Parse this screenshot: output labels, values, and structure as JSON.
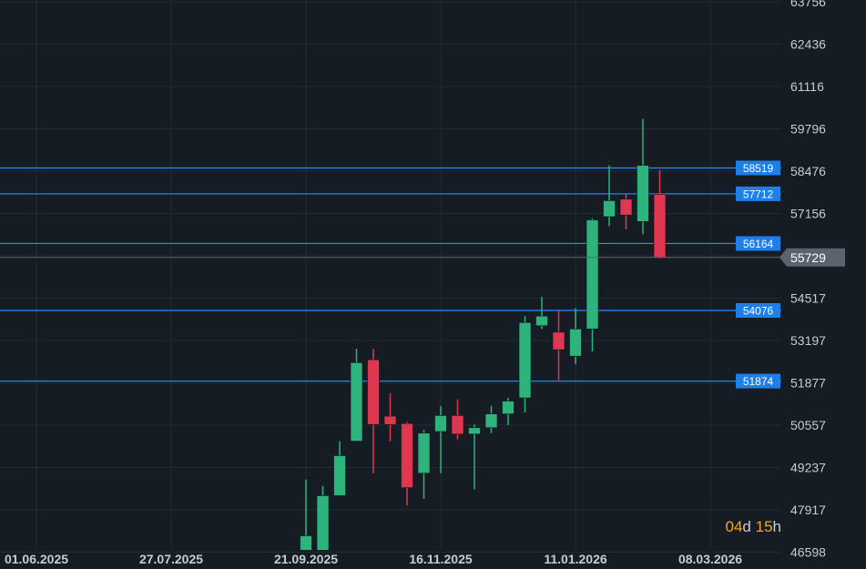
{
  "chart_data": {
    "type": "candlestick",
    "y_ticks": [
      "63756",
      "62436",
      "61116",
      "59796",
      "58476",
      "57156",
      "55729",
      "54517",
      "53197",
      "51877",
      "50557",
      "49237",
      "47917",
      "46598"
    ],
    "x_ticks": [
      "01.06.2025",
      "27.07.2025",
      "21.09.2025",
      "16.11.2025",
      "11.01.2026",
      "08.03.2026"
    ],
    "ylim": [
      46598,
      63756
    ],
    "levels": [
      {
        "label": "58519",
        "value": 58519
      },
      {
        "label": "57712",
        "value": 57712
      },
      {
        "label": "56164",
        "value": 56164
      },
      {
        "label": "54076",
        "value": 54076
      },
      {
        "label": "51874",
        "value": 51874
      }
    ],
    "current_price": {
      "label": "55729",
      "value": 55729
    },
    "colors": {
      "up": "#2fb37d",
      "down": "#e0364f",
      "level": "#2a8cff",
      "background": "#161c24"
    },
    "candles": [
      {
        "date": "2025-09-21",
        "open": 46598,
        "close": 47050,
        "high": 48800,
        "low": 46598
      },
      {
        "date": "2025-09-28",
        "open": 46598,
        "close": 48300,
        "high": 48600,
        "low": 46598
      },
      {
        "date": "2025-10-05",
        "open": 48300,
        "close": 49550,
        "high": 50000,
        "low": 48300
      },
      {
        "date": "2025-10-12",
        "open": 50000,
        "close": 52450,
        "high": 52880,
        "low": 50000
      },
      {
        "date": "2025-10-19",
        "open": 52540,
        "close": 50520,
        "high": 52880,
        "low": 49000
      },
      {
        "date": "2025-10-26",
        "open": 50780,
        "close": 50520,
        "high": 51500,
        "low": 50000
      },
      {
        "date": "2025-11-02",
        "open": 50550,
        "close": 48550,
        "high": 50600,
        "low": 48000
      },
      {
        "date": "2025-11-09",
        "open": 49000,
        "close": 50250,
        "high": 50350,
        "low": 48200
      },
      {
        "date": "2025-11-16",
        "open": 50300,
        "close": 50800,
        "high": 51100,
        "low": 49000
      },
      {
        "date": "2025-11-23",
        "open": 50800,
        "close": 50220,
        "high": 51300,
        "low": 50050
      },
      {
        "date": "2025-11-30",
        "open": 50220,
        "close": 50420,
        "high": 50520,
        "low": 48500
      },
      {
        "date": "2025-12-07",
        "open": 50420,
        "close": 50850,
        "high": 51100,
        "low": 50250
      },
      {
        "date": "2025-12-14",
        "open": 50850,
        "close": 51250,
        "high": 51350,
        "low": 50500
      },
      {
        "date": "2025-12-21",
        "open": 51350,
        "close": 53700,
        "high": 53900,
        "low": 50900
      },
      {
        "date": "2025-12-28",
        "open": 53600,
        "close": 53900,
        "high": 54500,
        "low": 53500
      },
      {
        "date": "2026-01-04",
        "open": 53400,
        "close": 52850,
        "high": 54100,
        "low": 51900
      },
      {
        "date": "2026-01-11",
        "open": 52650,
        "close": 53500,
        "high": 54150,
        "low": 52400
      },
      {
        "date": "2026-01-18",
        "open": 53500,
        "close": 56900,
        "high": 56950,
        "low": 52800
      },
      {
        "date": "2026-01-25",
        "open": 57000,
        "close": 57500,
        "high": 58600,
        "low": 56700
      },
      {
        "date": "2026-02-01",
        "open": 57550,
        "close": 57050,
        "high": 57700,
        "low": 56600
      },
      {
        "date": "2026-02-08",
        "open": 56850,
        "close": 58600,
        "high": 60050,
        "low": 56450
      },
      {
        "date": "2026-02-15",
        "open": 57700,
        "close": 55730,
        "high": 58450,
        "low": 55700
      }
    ]
  },
  "timer": {
    "days": "04",
    "days_unit": "d",
    "hours": "15",
    "hours_unit": "h"
  }
}
